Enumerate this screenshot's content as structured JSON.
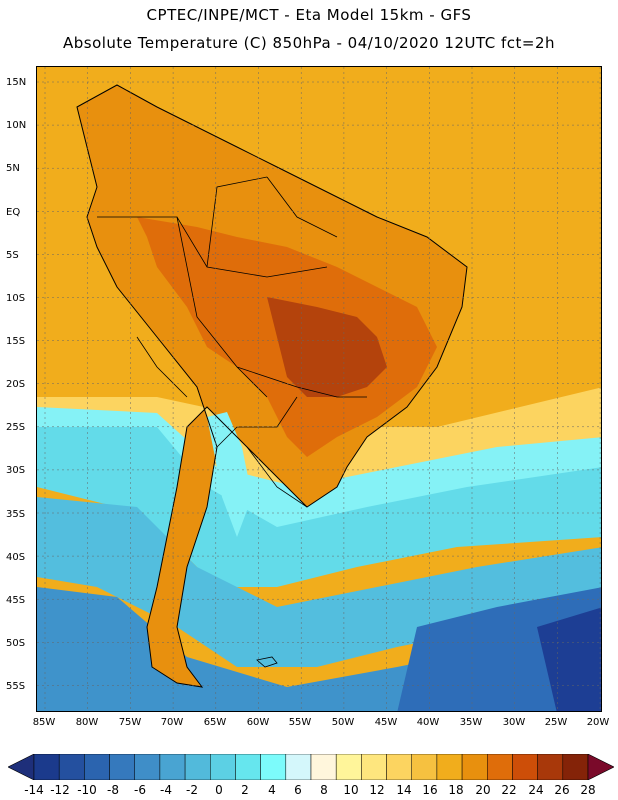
{
  "header": {
    "line1": "CPTEC/INPE/MCT -  Eta Model 15km - GFS",
    "line2": "Absolute Temperature (C) 850hPa - 04/10/2020 12UTC fct=2h"
  },
  "axes": {
    "lat_labels": [
      "15N",
      "10N",
      "5N",
      "EQ",
      "5S",
      "10S",
      "15S",
      "20S",
      "25S",
      "30S",
      "35S",
      "40S",
      "45S",
      "50S",
      "55S"
    ],
    "lon_labels": [
      "85W",
      "80W",
      "75W",
      "70W",
      "65W",
      "60W",
      "55W",
      "50W",
      "45W",
      "40W",
      "35W",
      "30W",
      "25W",
      "20W"
    ]
  },
  "colorbar": {
    "labels": [
      "-14",
      "-12",
      "-10",
      "-8",
      "-6",
      "-4",
      "-2",
      "0",
      "2",
      "4",
      "6",
      "8",
      "10",
      "12",
      "14",
      "16",
      "18",
      "20",
      "22",
      "24",
      "26",
      "28"
    ],
    "colors": [
      "#1b3a8c",
      "#24509f",
      "#2b64af",
      "#3579bd",
      "#3f8ec8",
      "#49a4d2",
      "#52badb",
      "#5cd0e4",
      "#66e6ee",
      "#7cfbfb",
      "#d4f7fb",
      "#fff6dc",
      "#fff59a",
      "#fee67e",
      "#fcd460",
      "#f6c140",
      "#f1ad1c",
      "#e8900e",
      "#df6d0a",
      "#cd4e08",
      "#a8380a",
      "#842308"
    ],
    "min_color": "#1e2f7a",
    "max_color": "#7a0a2a"
  },
  "regions": {
    "south_atlantic_deep": "#1d3e94",
    "south_atlantic": "#2e6db8",
    "cold_mid": "#3f93cb",
    "cold_light": "#53bede",
    "cyan": "#63dbe9",
    "cyan_light": "#85f2f6",
    "mild": "#fcd460",
    "warm_ocean": "#f1ad1c",
    "warm_land": "#e8900e",
    "hot_land": "#df6d0a",
    "hottest": "#b4430c"
  }
}
